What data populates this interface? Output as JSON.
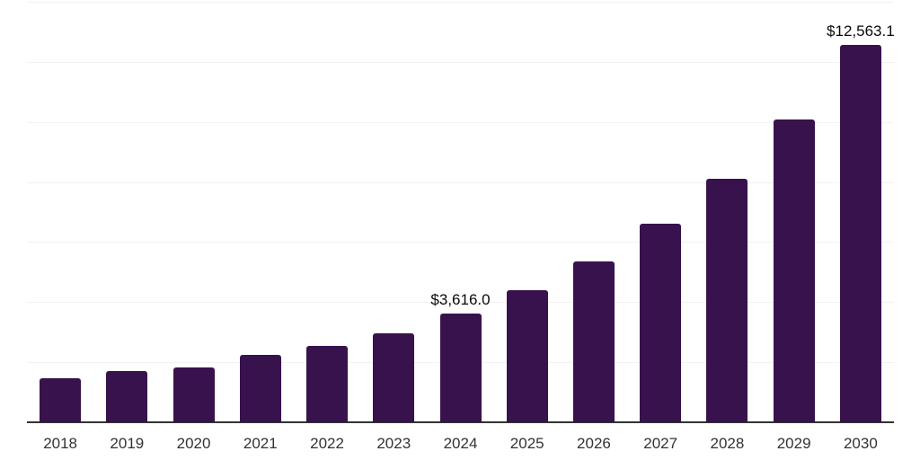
{
  "chart_data": {
    "type": "bar",
    "title": "",
    "xlabel": "",
    "ylabel": "",
    "categories": [
      "2018",
      "2019",
      "2020",
      "2021",
      "2022",
      "2023",
      "2024",
      "2025",
      "2026",
      "2027",
      "2028",
      "2029",
      "2030"
    ],
    "values": [
      1460,
      1700,
      1820,
      2240,
      2540,
      2960,
      3616.0,
      4390,
      5340,
      6600,
      8120,
      10090,
      12563.1
    ],
    "labeled_points": [
      {
        "category": "2024",
        "index": 6,
        "label": "$3,616.0"
      },
      {
        "category": "2030",
        "index": 12,
        "label": "$12,563.1"
      }
    ],
    "ylim": [
      0,
      14000
    ],
    "gridline_step": 2000,
    "grid": "horizontal",
    "legend_position": "none",
    "colors": {
      "bar": "#38124D",
      "background": "#FFFFFF",
      "gridline": "#F2F2F2",
      "axis_line": "#333333",
      "tick_label": "#333333",
      "value_label": "#0A0A0A"
    }
  }
}
